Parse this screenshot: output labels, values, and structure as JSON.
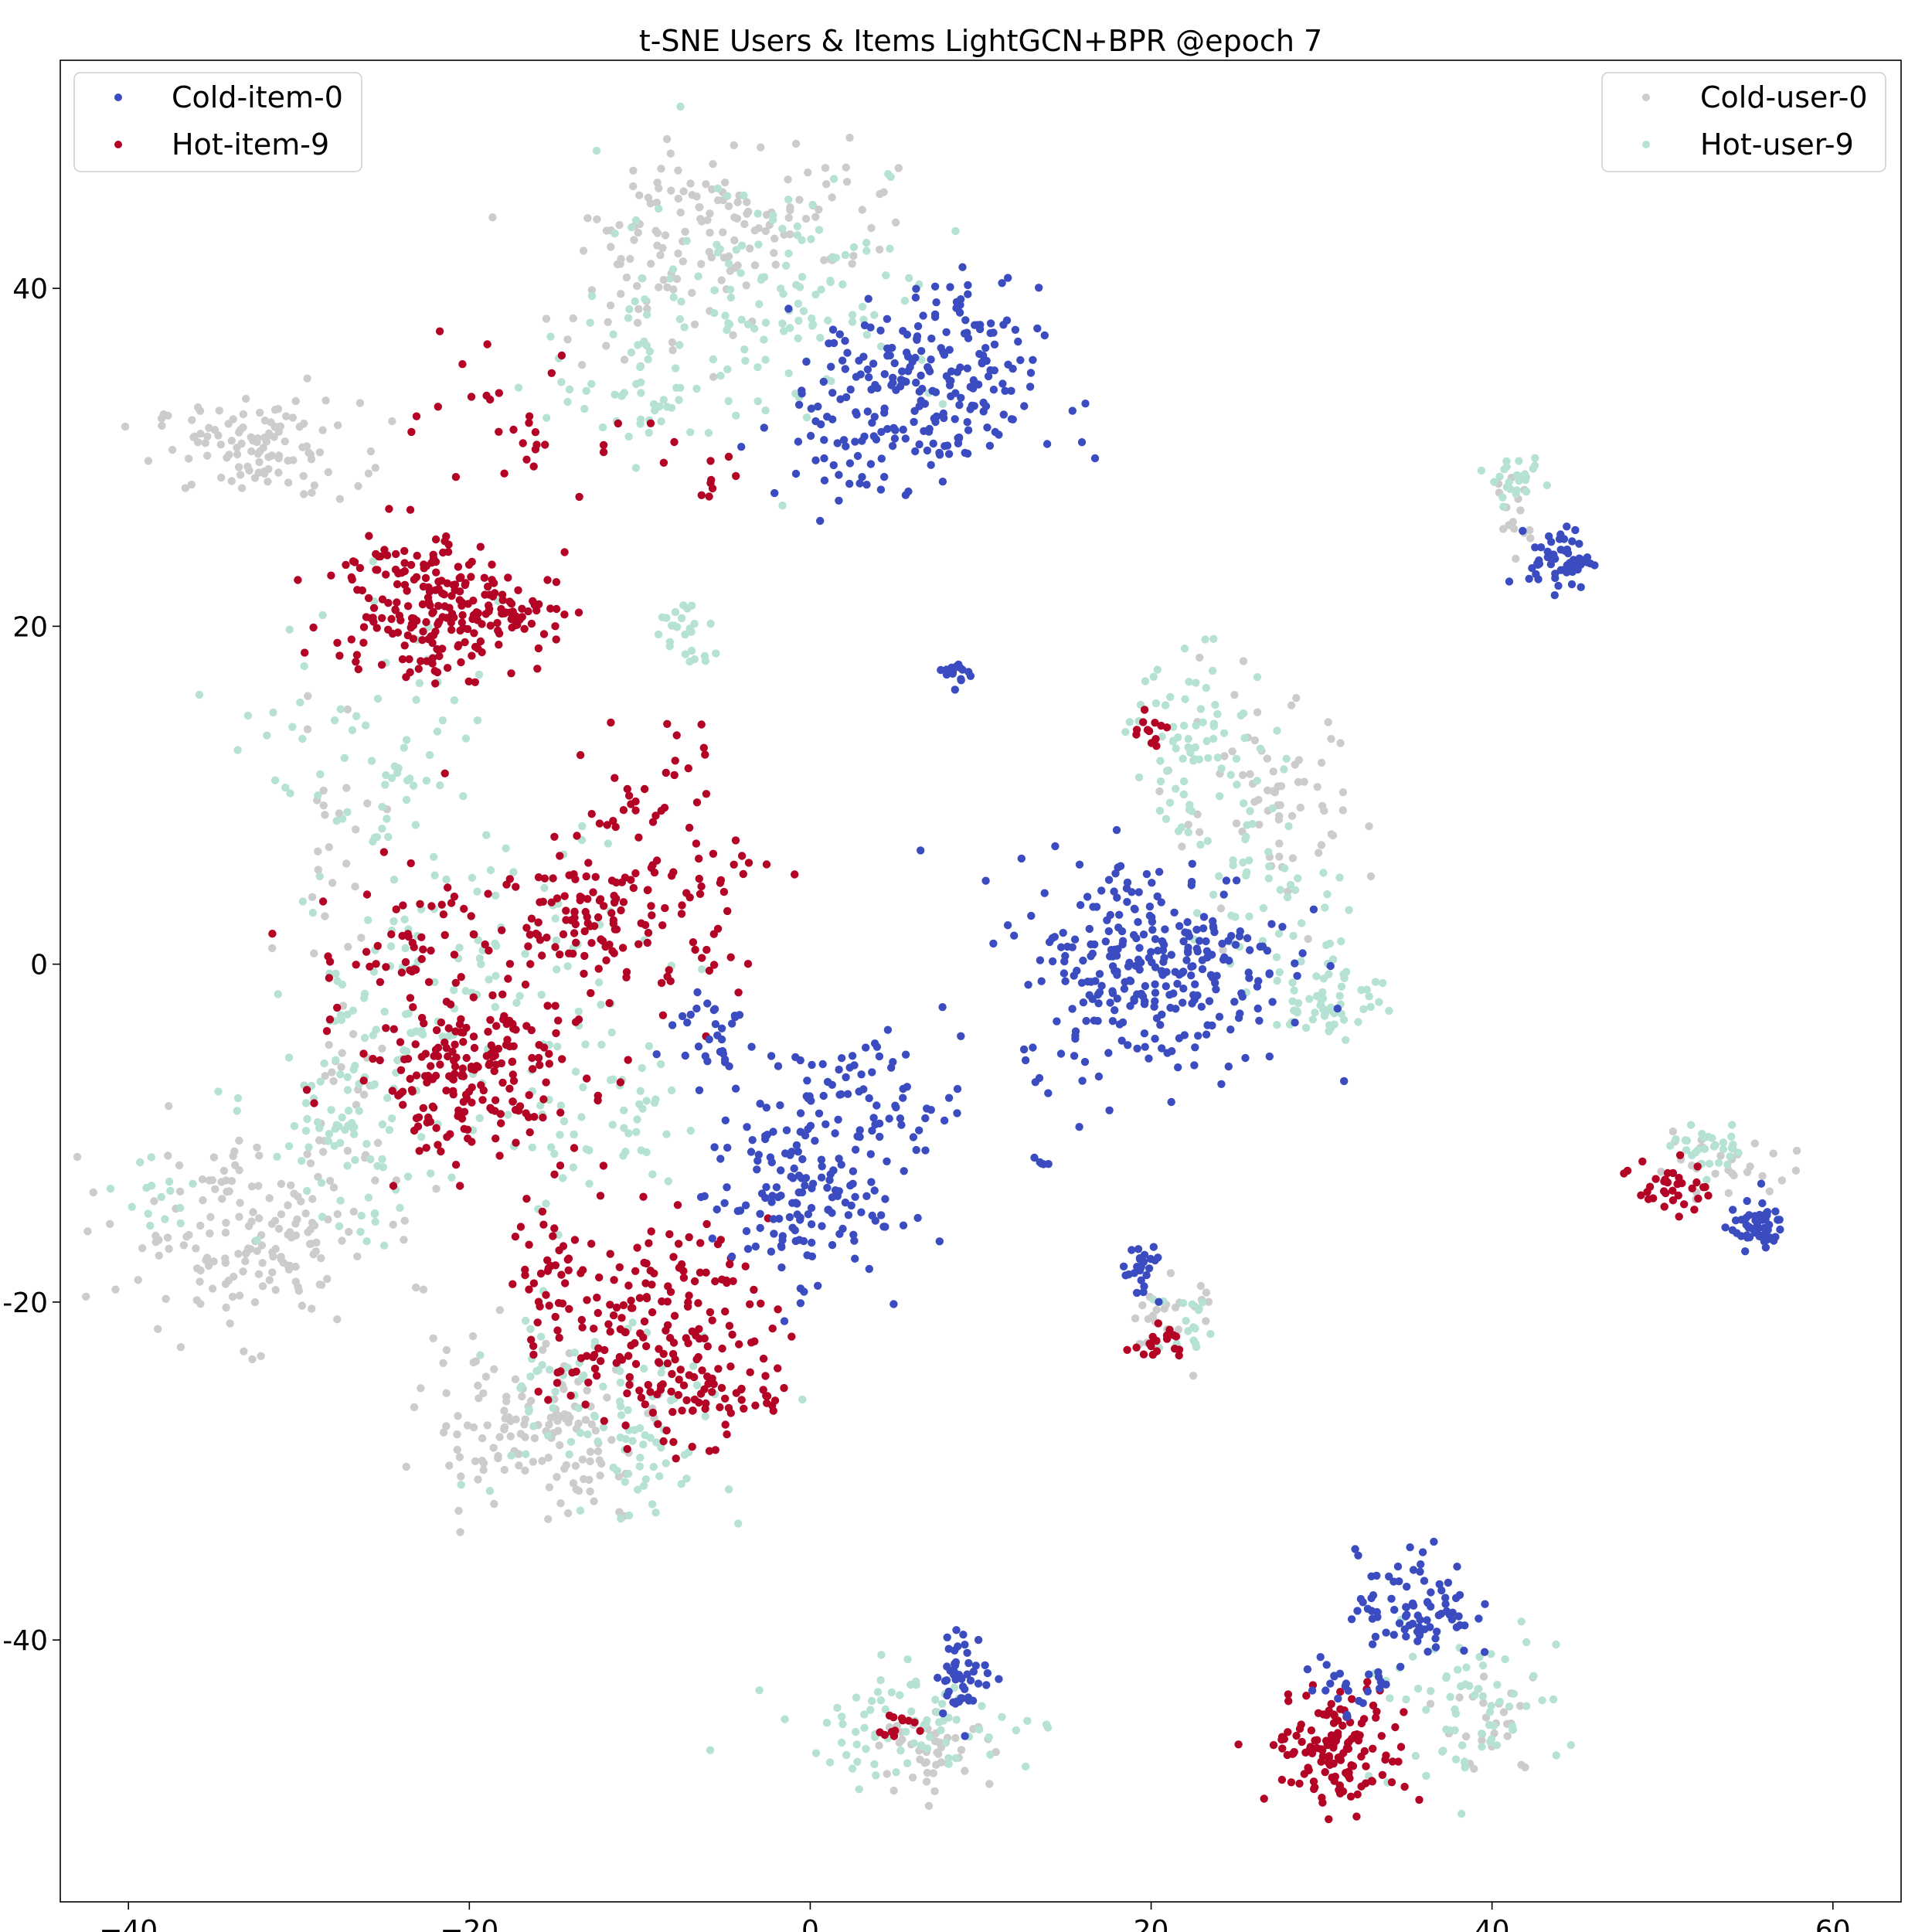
{
  "chart_data": {
    "type": "scatter",
    "title": "t-SNE Users & Items LightGCN+BPR @epoch 7",
    "xlabel": "",
    "ylabel": "",
    "xlim": [
      -44,
      64
    ],
    "ylim": [
      -55.5,
      53.5
    ],
    "xticks": [
      -40,
      -20,
      0,
      20,
      40,
      60
    ],
    "yticks": [
      -40,
      -20,
      0,
      20,
      40
    ],
    "xtick_labels": [
      "−40",
      "−20",
      "0",
      "20",
      "40",
      "60"
    ],
    "ytick_labels": [
      "-40",
      "-20",
      "0",
      "20",
      "40"
    ],
    "grid": false,
    "legends": [
      {
        "placement": "top-left",
        "entries": [
          "Cold-item-0",
          "Hot-item-9"
        ]
      },
      {
        "placement": "top-right",
        "entries": [
          "Cold-user-0",
          "Hot-user-9"
        ]
      }
    ],
    "series": [
      {
        "name": "Cold-item-0",
        "color": "#3b4cc0",
        "clusters": [
          {
            "center": [
              7,
              34
            ],
            "spread": [
              3.2,
              3.0
            ],
            "count": 220
          },
          {
            "center": [
              2,
              31
            ],
            "spread": [
              2.5,
              2.2
            ],
            "count": 40
          },
          {
            "center": [
              44,
              24
            ],
            "spread": [
              0.9,
              0.9
            ],
            "count": 60
          },
          {
            "center": [
              8.7,
              17.2
            ],
            "spread": [
              0.4,
              0.4
            ],
            "count": 15
          },
          {
            "center": [
              20,
              0
            ],
            "spread": [
              4.0,
              3.2
            ],
            "count": 300
          },
          {
            "center": [
              3,
              -8
            ],
            "spread": [
              3.0,
              2.0
            ],
            "count": 80
          },
          {
            "center": [
              -1,
              -14
            ],
            "spread": [
              2.6,
              2.4
            ],
            "count": 140
          },
          {
            "center": [
              -6,
              -4
            ],
            "spread": [
              1.5,
              1.5
            ],
            "count": 30
          },
          {
            "center": [
              55.5,
              -15.5
            ],
            "spread": [
              0.8,
              0.7
            ],
            "count": 55
          },
          {
            "center": [
              19.5,
              -18.5
            ],
            "spread": [
              0.6,
              0.9
            ],
            "count": 25
          },
          {
            "center": [
              13.5,
              -11.5
            ],
            "spread": [
              0.2,
              0.4
            ],
            "count": 5
          },
          {
            "center": [
              35.5,
              -38
            ],
            "spread": [
              1.7,
              1.6
            ],
            "count": 85
          },
          {
            "center": [
              32,
              -42.5
            ],
            "spread": [
              1.5,
              1.0
            ],
            "count": 25
          },
          {
            "center": [
              9,
              -42
            ],
            "spread": [
              0.8,
              1.2
            ],
            "count": 50
          }
        ]
      },
      {
        "name": "Hot-item-9",
        "color": "#b40426",
        "clusters": [
          {
            "center": [
              -23,
              21.5
            ],
            "spread": [
              2.6,
              2.4
            ],
            "count": 190
          },
          {
            "center": [
              -17,
              20.5
            ],
            "spread": [
              1.6,
              1.2
            ],
            "count": 55
          },
          {
            "center": [
              -17,
              31.5
            ],
            "spread": [
              3.0,
              2.0
            ],
            "count": 30
          },
          {
            "center": [
              -12,
              3
            ],
            "spread": [
              4.0,
              2.6
            ],
            "count": 170
          },
          {
            "center": [
              -24,
              1
            ],
            "spread": [
              2.5,
              2.2
            ],
            "count": 45
          },
          {
            "center": [
              -20,
              -6.5
            ],
            "spread": [
              3.4,
              2.4
            ],
            "count": 200
          },
          {
            "center": [
              -9,
              -22
            ],
            "spread": [
              3.2,
              3.2
            ],
            "count": 200
          },
          {
            "center": [
              -15,
              -18
            ],
            "spread": [
              1.4,
              1.8
            ],
            "count": 35
          },
          {
            "center": [
              -5,
              -25.5
            ],
            "spread": [
              2.0,
              0.8
            ],
            "count": 25
          },
          {
            "center": [
              -9,
              11
            ],
            "spread": [
              2.0,
              2.2
            ],
            "count": 25
          },
          {
            "center": [
              20,
              14
            ],
            "spread": [
              0.5,
              0.6
            ],
            "count": 12
          },
          {
            "center": [
              20.5,
              -22.5
            ],
            "spread": [
              0.7,
              0.5
            ],
            "count": 18
          },
          {
            "center": [
              50.5,
              -13
            ],
            "spread": [
              1.1,
              0.9
            ],
            "count": 35
          },
          {
            "center": [
              31,
              -46.5
            ],
            "spread": [
              2.0,
              1.7
            ],
            "count": 140
          },
          {
            "center": [
              5.5,
              -45
            ],
            "spread": [
              0.8,
              0.5
            ],
            "count": 12
          },
          {
            "center": [
              -6,
              29
            ],
            "spread": [
              1.2,
              1.2
            ],
            "count": 10
          }
        ]
      },
      {
        "name": "Cold-user-0",
        "color": "#cccccc",
        "clusters": [
          {
            "center": [
              -32.5,
              30.5
            ],
            "spread": [
              3.0,
              1.4
            ],
            "count": 110
          },
          {
            "center": [
              -4,
              44.5
            ],
            "spread": [
              4.5,
              2.2
            ],
            "count": 120
          },
          {
            "center": [
              -10,
              39
            ],
            "spread": [
              2.8,
              2.2
            ],
            "count": 40
          },
          {
            "center": [
              -33,
              -16
            ],
            "spread": [
              3.8,
              2.8
            ],
            "count": 170
          },
          {
            "center": [
              -17,
              -27
            ],
            "spread": [
              3.0,
              2.2
            ],
            "count": 110
          },
          {
            "center": [
              -13,
              -30
            ],
            "spread": [
              1.5,
              1.5
            ],
            "count": 30
          },
          {
            "center": [
              27,
              9
            ],
            "spread": [
              2.8,
              3.2
            ],
            "count": 70
          },
          {
            "center": [
              41,
              26
            ],
            "spread": [
              0.7,
              1.5
            ],
            "count": 15
          },
          {
            "center": [
              53,
              -12
            ],
            "spread": [
              2.4,
              0.8
            ],
            "count": 30
          },
          {
            "center": [
              21,
              -21
            ],
            "spread": [
              1.4,
              1.3
            ],
            "count": 25
          },
          {
            "center": [
              7.5,
              -46.5
            ],
            "spread": [
              1.6,
              1.0
            ],
            "count": 45
          },
          {
            "center": [
              40,
              -45
            ],
            "spread": [
              1.5,
              1.6
            ],
            "count": 25
          },
          {
            "center": [
              -28,
              8
            ],
            "spread": [
              1.5,
              4.0
            ],
            "count": 25
          },
          {
            "center": [
              -27,
              -8
            ],
            "spread": [
              1.5,
              3.0
            ],
            "count": 20
          }
        ]
      },
      {
        "name": "Hot-user-9",
        "color": "#b5e2d2",
        "clusters": [
          {
            "center": [
              -2,
              40
            ],
            "spread": [
              5.0,
              3.8
            ],
            "count": 130
          },
          {
            "center": [
              -9,
              34
            ],
            "spread": [
              3.0,
              2.0
            ],
            "count": 50
          },
          {
            "center": [
              -7.5,
              19.5
            ],
            "spread": [
              0.9,
              1.1
            ],
            "count": 25
          },
          {
            "center": [
              -25,
              12
            ],
            "spread": [
              3.6,
              4.5
            ],
            "count": 70
          },
          {
            "center": [
              -20,
              0
            ],
            "spread": [
              5.0,
              4.0
            ],
            "count": 110
          },
          {
            "center": [
              -27,
              -10
            ],
            "spread": [
              2.6,
              3.2
            ],
            "count": 90
          },
          {
            "center": [
              -12,
              -10
            ],
            "spread": [
              3.2,
              3.0
            ],
            "count": 55
          },
          {
            "center": [
              -13,
              -26
            ],
            "spread": [
              3.5,
              2.8
            ],
            "count": 80
          },
          {
            "center": [
              -9,
              -30
            ],
            "spread": [
              2.0,
              1.5
            ],
            "count": 25
          },
          {
            "center": [
              23,
              13
            ],
            "spread": [
              2.2,
              2.6
            ],
            "count": 80
          },
          {
            "center": [
              30.5,
              -2
            ],
            "spread": [
              1.6,
              1.3
            ],
            "count": 60
          },
          {
            "center": [
              27,
              4
            ],
            "spread": [
              2.5,
              2.5
            ],
            "count": 45
          },
          {
            "center": [
              41.5,
              28.5
            ],
            "spread": [
              0.7,
              0.6
            ],
            "count": 25
          },
          {
            "center": [
              53,
              -11
            ],
            "spread": [
              1.2,
              0.6
            ],
            "count": 30
          },
          {
            "center": [
              22,
              -21.5
            ],
            "spread": [
              1.0,
              1.0
            ],
            "count": 18
          },
          {
            "center": [
              6,
              -45
            ],
            "spread": [
              3.8,
              1.6
            ],
            "count": 80
          },
          {
            "center": [
              38,
              -44
            ],
            "spread": [
              3.0,
              2.2
            ],
            "count": 70
          },
          {
            "center": [
              -38,
              -13.5
            ],
            "spread": [
              1.3,
              1.2
            ],
            "count": 15
          }
        ]
      }
    ]
  }
}
